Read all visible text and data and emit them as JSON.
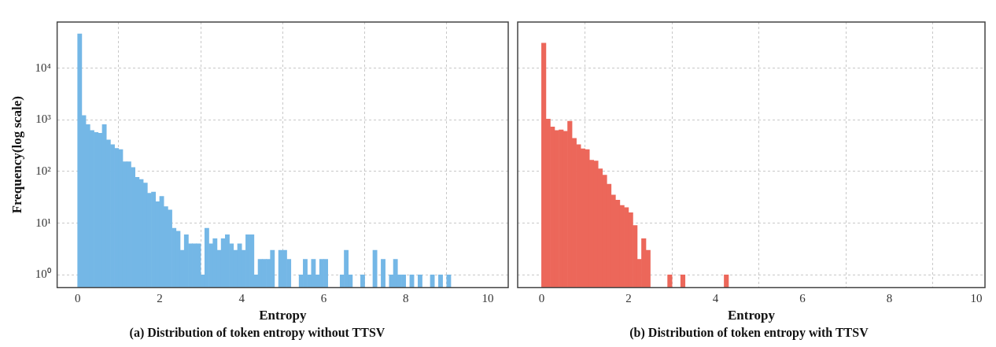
{
  "chart_data": [
    {
      "type": "histogram",
      "title": "(a) Distribution of token entropy without TTSV",
      "xlabel": "Entropy",
      "ylabel": "Frequency(log scale)",
      "color": "#74b7e6",
      "log": "y",
      "grid": true,
      "bins": [
        0,
        0.1,
        0.2,
        0.3,
        0.4,
        0.5,
        0.6,
        0.7,
        0.8,
        0.9,
        1,
        1.1,
        1.2,
        1.3,
        1.4,
        1.5,
        1.6,
        1.7,
        1.8,
        1.9,
        2,
        2.1,
        2.2,
        2.3,
        2.4,
        2.5,
        2.6,
        2.7,
        2.8,
        2.9,
        3,
        3.1,
        3.2,
        3.3,
        3.4,
        3.5,
        3.6,
        3.7,
        3.8,
        3.9,
        4,
        4.1,
        4.2,
        4.3,
        4.4,
        4.5,
        4.6,
        4.7,
        4.8,
        4.9,
        5,
        5.1,
        5.2,
        5.3,
        5.4,
        5.5,
        5.6,
        5.7,
        5.8,
        5.9,
        6,
        6.1,
        6.2,
        6.3,
        6.4,
        6.5,
        6.6,
        6.7,
        6.8,
        6.9,
        7,
        7.1,
        7.2,
        7.3,
        7.4,
        7.5,
        7.6,
        7.7,
        7.8,
        7.9,
        8,
        8.1,
        8.2,
        8.3,
        8.4,
        8.5,
        8.6,
        8.7,
        8.8,
        8.9,
        9,
        9.1
      ],
      "values": [
        46000,
        1210,
        810,
        620,
        570,
        550,
        810,
        410,
        330,
        280,
        265,
        155,
        155,
        120,
        77,
        70,
        60,
        38,
        40,
        26,
        33,
        21,
        18,
        8,
        7,
        3,
        6,
        4,
        4,
        4,
        1,
        8,
        4,
        5,
        3,
        5,
        6,
        4,
        3,
        4,
        3,
        6,
        6,
        1,
        2,
        2,
        2,
        3,
        null,
        3,
        3,
        2,
        null,
        null,
        1,
        2,
        1,
        2,
        1,
        2,
        2,
        null,
        null,
        null,
        1,
        3,
        1,
        null,
        null,
        1,
        null,
        null,
        3,
        null,
        2,
        null,
        1,
        2,
        1,
        1,
        null,
        1,
        null,
        1,
        null,
        null,
        1,
        null,
        1,
        null,
        1
      ],
      "xlim": [
        -0.5,
        10.5
      ],
      "xticks": [
        0,
        2,
        4,
        6,
        8,
        10
      ],
      "ylim": [
        0.57,
        78000
      ],
      "yticks": [
        {
          "value": 1,
          "label": "10⁰"
        },
        {
          "value": 10,
          "label": "10¹"
        },
        {
          "value": 100,
          "label": "10²"
        },
        {
          "value": 1000,
          "label": "10³"
        },
        {
          "value": 10000,
          "label": "10⁴"
        }
      ]
    },
    {
      "type": "histogram",
      "title": "(b) Distribution of token entropy with TTSV",
      "xlabel": "Entropy",
      "color": "#ec675a",
      "log": "y",
      "grid": true,
      "tick_labels": "x",
      "bins": [
        0,
        0.1,
        0.2,
        0.3,
        0.4,
        0.5,
        0.6,
        0.7,
        0.8,
        0.9,
        1,
        1.1,
        1.2,
        1.3,
        1.4,
        1.5,
        1.6,
        1.7,
        1.8,
        1.9,
        2,
        2.1,
        2.2,
        2.3,
        2.4,
        2.5,
        2.6,
        2.7,
        2.8,
        2.9,
        3,
        3.1,
        3.2,
        3.3,
        3.4,
        3.5,
        3.6,
        3.7,
        3.8,
        3.9,
        4,
        4.1,
        4.2,
        4.3
      ],
      "values": [
        30500,
        1030,
        730,
        620,
        640,
        600,
        940,
        440,
        330,
        275,
        265,
        165,
        160,
        113,
        85,
        57,
        35,
        28,
        22,
        20,
        16,
        9,
        2,
        5,
        3,
        null,
        null,
        null,
        null,
        1,
        null,
        null,
        1,
        null,
        null,
        null,
        null,
        null,
        null,
        null,
        null,
        null,
        1
      ],
      "xlim": [
        -0.55,
        10.2
      ],
      "xticks": [
        0,
        2,
        4,
        6,
        8,
        10
      ],
      "ylim": [
        0.57,
        78000
      ],
      "yticks": [
        {
          "value": 1,
          "label": null
        },
        {
          "value": 10,
          "label": null
        },
        {
          "value": 100,
          "label": null
        },
        {
          "value": 1000,
          "label": null
        },
        {
          "value": 10000,
          "label": null
        }
      ]
    }
  ]
}
